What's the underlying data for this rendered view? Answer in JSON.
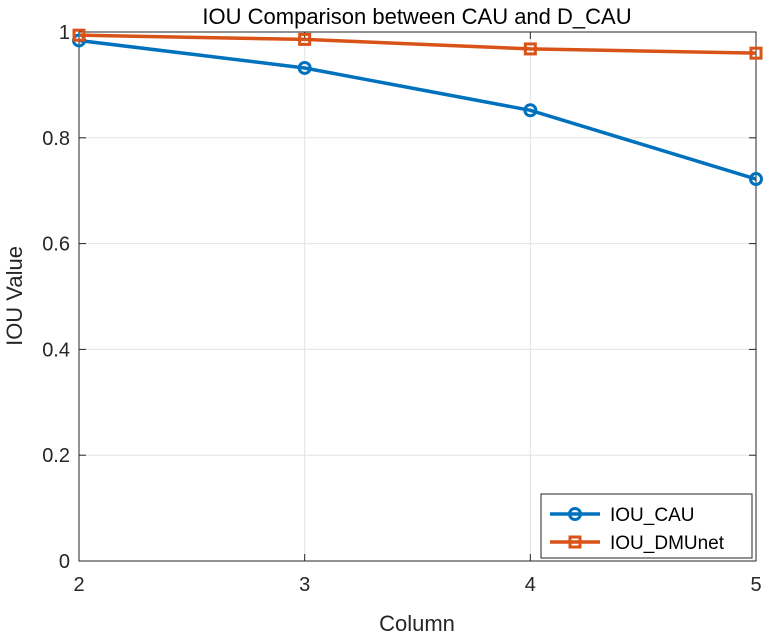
{
  "chart_data": {
    "type": "line",
    "title": "IOU Comparison between CAU and D_CAU",
    "xlabel": "Column",
    "ylabel": "IOU Value",
    "x": [
      2,
      3,
      4,
      5
    ],
    "xlim": [
      2,
      5
    ],
    "ylim": [
      0,
      1
    ],
    "xticks": [
      "2",
      "3",
      "4",
      "5"
    ],
    "yticks": [
      "0",
      "0.2",
      "0.4",
      "0.6",
      "0.8",
      "1"
    ],
    "grid": true,
    "legend_position": "bottom-right",
    "series": [
      {
        "name": "IOU_CAU",
        "values": [
          0.984,
          0.932,
          0.852,
          0.722
        ],
        "color": "#0072BD",
        "marker": "circle"
      },
      {
        "name": "IOU_DMUnet",
        "values": [
          0.994,
          0.986,
          0.968,
          0.96
        ],
        "color": "#D95319",
        "marker": "square"
      }
    ]
  }
}
